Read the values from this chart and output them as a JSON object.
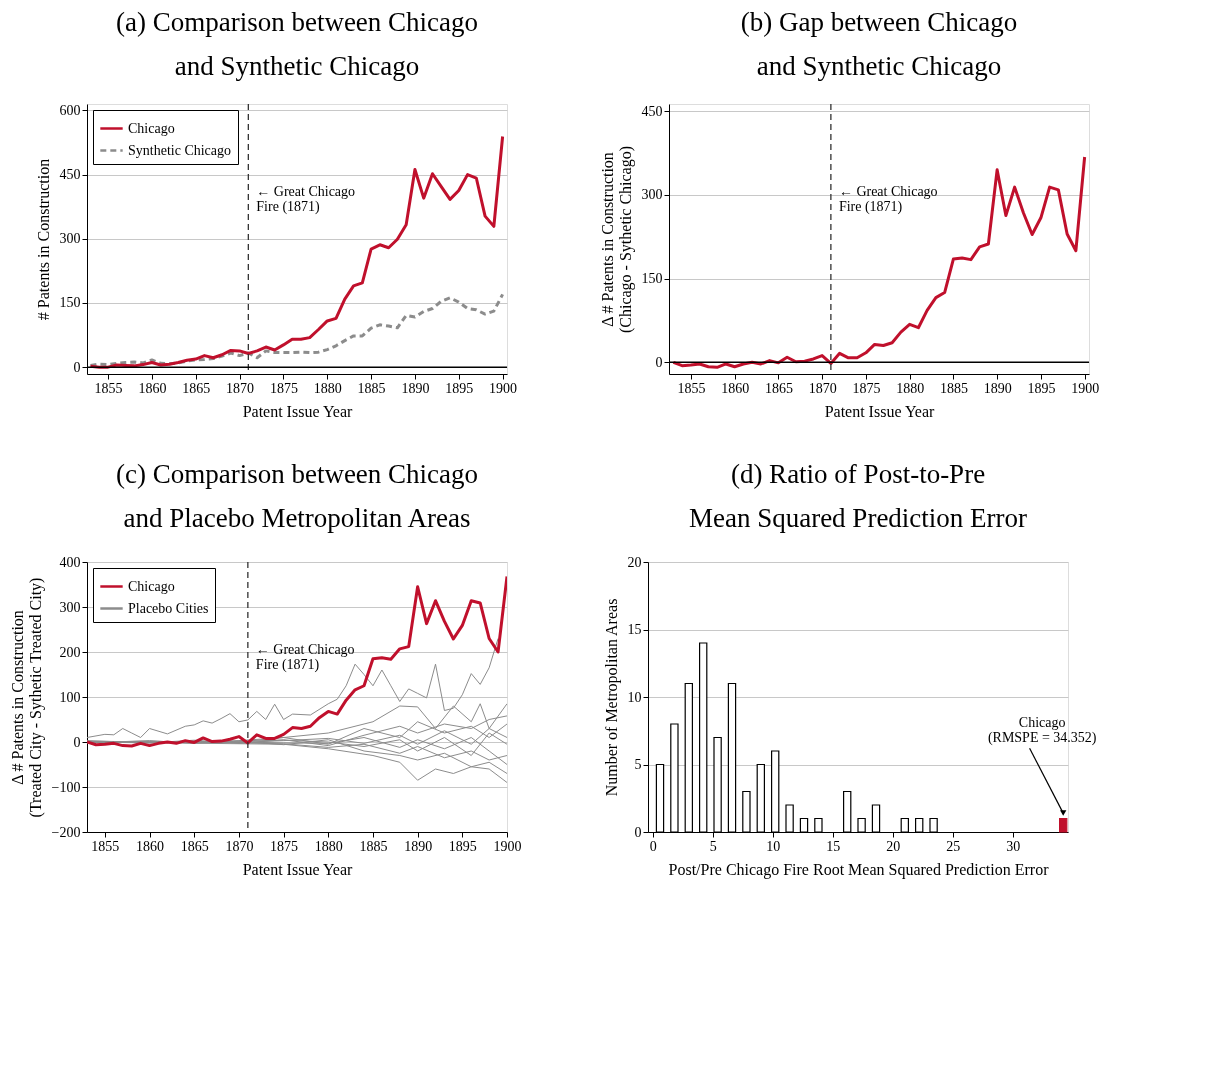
{
  "chart_data": [
    {
      "type": "line",
      "title": "(a) Comparison between Chicago\nand Synthetic Chicago",
      "xlabel": "Patent Issue Year",
      "ylabel": "# Patents in Construction",
      "x": [
        1853,
        1854,
        1855,
        1856,
        1857,
        1858,
        1859,
        1860,
        1861,
        1862,
        1863,
        1864,
        1865,
        1866,
        1867,
        1868,
        1869,
        1870,
        1871,
        1872,
        1873,
        1874,
        1875,
        1876,
        1877,
        1878,
        1879,
        1880,
        1881,
        1882,
        1883,
        1884,
        1885,
        1886,
        1887,
        1888,
        1889,
        1890,
        1891,
        1892,
        1893,
        1894,
        1895,
        1896,
        1897,
        1898,
        1899,
        1900
      ],
      "series": [
        {
          "name": "Chicago",
          "color": "#c0102c",
          "values": [
            2,
            0,
            0,
            5,
            4,
            3,
            6,
            11,
            5,
            7,
            11,
            16,
            19,
            27,
            22,
            29,
            39,
            38,
            32,
            38,
            47,
            40,
            52,
            65,
            65,
            69,
            88,
            108,
            114,
            159,
            190,
            197,
            276,
            286,
            279,
            299,
            333,
            462,
            395,
            452,
            422,
            392,
            413,
            450,
            442,
            353,
            329,
            539
          ]
        },
        {
          "name": "Synthetic Chicago",
          "color": "#8c8c8c",
          "line_style": "dashed",
          "values": [
            4,
            7,
            6,
            9,
            11,
            12,
            10,
            17,
            9,
            8,
            10,
            14,
            17,
            18,
            20,
            26,
            33,
            27,
            33,
            22,
            38,
            34,
            34,
            34,
            35,
            34,
            35,
            41,
            50,
            62,
            73,
            73,
            91,
            99,
            96,
            92,
            121,
            117,
            130,
            137,
            154,
            162,
            152,
            137,
            134,
            124,
            131,
            170
          ]
        }
      ],
      "xlim": [
        1852.6,
        1900.5
      ],
      "ylim": [
        -16,
        615
      ],
      "xticks": [
        1855,
        1860,
        1865,
        1870,
        1875,
        1880,
        1885,
        1890,
        1895,
        1900
      ],
      "yticks": [
        0,
        150,
        300,
        450,
        600
      ],
      "grid": "y",
      "legend": "top left",
      "ref_lines": [
        {
          "axis": "x",
          "value": 1871,
          "label": "← Great Chicago\n    Fire (1871)",
          "line_style": "dashed",
          "color": "#333333"
        },
        {
          "axis": "y",
          "value": 0,
          "color": "#000000",
          "line_style": "solid"
        }
      ]
    },
    {
      "type": "line",
      "title": "(b) Gap between Chicago\nand Synthetic Chicago",
      "xlabel": "Patent Issue Year",
      "ylabel": "Δ # Patents in Construction\n(Chicago - Sythetic Chicago)",
      "x": [
        1853,
        1854,
        1855,
        1856,
        1857,
        1858,
        1859,
        1860,
        1861,
        1862,
        1863,
        1864,
        1865,
        1866,
        1867,
        1868,
        1869,
        1870,
        1871,
        1872,
        1873,
        1874,
        1875,
        1876,
        1877,
        1878,
        1879,
        1880,
        1881,
        1882,
        1883,
        1884,
        1885,
        1886,
        1887,
        1888,
        1889,
        1890,
        1891,
        1892,
        1893,
        1894,
        1895,
        1896,
        1897,
        1898,
        1899,
        1900
      ],
      "series": [
        {
          "color": "#c0102c",
          "values": [
            0,
            -6,
            -5,
            -3,
            -8,
            -9,
            -3,
            -8,
            -3,
            0,
            -3,
            3,
            -1,
            9,
            1,
            2,
            6,
            12,
            -2,
            16,
            8,
            8,
            17,
            32,
            30,
            35,
            54,
            68,
            62,
            93,
            116,
            125,
            185,
            187,
            184,
            207,
            212,
            345,
            263,
            314,
            268,
            229,
            259,
            314,
            309,
            230,
            200,
            368
          ]
        }
      ],
      "xlim": [
        1852.5,
        1900.5
      ],
      "ylim": [
        -21,
        463
      ],
      "xticks": [
        1855,
        1860,
        1865,
        1870,
        1875,
        1880,
        1885,
        1890,
        1895,
        1900
      ],
      "yticks": [
        0,
        150,
        300,
        450
      ],
      "grid": "y",
      "ref_lines": [
        {
          "axis": "x",
          "value": 1871,
          "label": "← Great Chicago\n    Fire (1871)",
          "line_style": "dashed",
          "color": "#333333"
        },
        {
          "axis": "y",
          "value": 0,
          "color": "#000000",
          "line_style": "solid"
        }
      ]
    },
    {
      "type": "line",
      "title": "(c) Comparison between Chicago\nand Placebo Metropolitan Areas",
      "xlabel": "Patent Issue Year",
      "ylabel": "Δ # Patents in Construction\n(Treated City - Sythetic Treated City)",
      "x": [
        1853,
        1854,
        1855,
        1856,
        1857,
        1858,
        1859,
        1860,
        1861,
        1862,
        1863,
        1864,
        1865,
        1866,
        1867,
        1868,
        1869,
        1870,
        1871,
        1872,
        1873,
        1874,
        1875,
        1876,
        1877,
        1878,
        1879,
        1880,
        1881,
        1882,
        1883,
        1884,
        1885,
        1886,
        1887,
        1888,
        1889,
        1890,
        1891,
        1892,
        1893,
        1894,
        1895,
        1896,
        1897,
        1898,
        1899,
        1900
      ],
      "series": [
        {
          "name": "Chicago",
          "color": "#c0102c",
          "values": [
            0,
            -6,
            -5,
            -3,
            -8,
            -9,
            -3,
            -8,
            -3,
            0,
            -3,
            3,
            -1,
            9,
            1,
            2,
            6,
            12,
            -2,
            16,
            8,
            8,
            17,
            32,
            30,
            35,
            54,
            68,
            62,
            93,
            116,
            125,
            185,
            187,
            184,
            207,
            212,
            345,
            263,
            314,
            268,
            229,
            259,
            314,
            309,
            230,
            200,
            368
          ]
        },
        {
          "name": "Placebo Cities",
          "color": "#8c8c8c",
          "x": [
            1853,
            1855,
            1856,
            1857,
            1858,
            1859,
            1860,
            1862,
            1864,
            1865,
            1866,
            1867,
            1868,
            1869,
            1870,
            1871,
            1872,
            1873,
            1874,
            1875,
            1876,
            1878,
            1880,
            1881,
            1882,
            1883,
            1884,
            1885,
            1886,
            1887,
            1888,
            1889,
            1890,
            1891,
            1892,
            1893,
            1894,
            1895,
            1896,
            1897,
            1898,
            1899
          ],
          "values": [
            10,
            17,
            16,
            30,
            20,
            10,
            30,
            18,
            35,
            38,
            47,
            42,
            52,
            63,
            45,
            49,
            68,
            50,
            84,
            50,
            62,
            60,
            85,
            95,
            125,
            173,
            150,
            125,
            160,
            125,
            90,
            118,
            108,
            98,
            173,
            70,
            75,
            105,
            152,
            128,
            165,
            230
          ]
        },
        {
          "color": "#8c8c8c",
          "x": [
            1853,
            1870,
            1880,
            1885,
            1888,
            1890,
            1892,
            1894,
            1896,
            1897,
            1898,
            1900
          ],
          "values": [
            0,
            0,
            20,
            45,
            80,
            78,
            30,
            80,
            45,
            85,
            30,
            85
          ]
        },
        {
          "color": "#8c8c8c",
          "x": [
            1853,
            1875,
            1880,
            1885,
            1888,
            1890,
            1892,
            1894,
            1896,
            1898,
            1900
          ],
          "values": [
            0,
            -5,
            -15,
            -30,
            -45,
            -85,
            -60,
            -70,
            -55,
            -60,
            -90
          ]
        },
        {
          "color": "#8c8c8c",
          "x": [
            1853,
            1860,
            1865,
            1870,
            1875,
            1880,
            1884,
            1888,
            1890,
            1893,
            1896,
            1898,
            1900
          ],
          "values": [
            3,
            -2,
            4,
            -3,
            5,
            -8,
            15,
            35,
            20,
            40,
            30,
            50,
            58
          ]
        },
        {
          "color": "#8c8c8c",
          "x": [
            1853,
            1860,
            1865,
            1870,
            1875,
            1880,
            1884,
            1888,
            1890,
            1893,
            1896,
            1898,
            1900
          ],
          "values": [
            -2,
            3,
            -3,
            2,
            -6,
            5,
            -20,
            -30,
            -40,
            -25,
            -55,
            -45,
            -70
          ]
        },
        {
          "color": "#8c8c8c",
          "x": [
            1853,
            1860,
            1865,
            1870,
            1875,
            1880,
            1884,
            1888,
            1890,
            1893,
            1896,
            1898,
            1900
          ],
          "values": [
            0,
            1,
            -2,
            3,
            10,
            -5,
            30,
            10,
            45,
            20,
            35,
            10,
            40
          ]
        },
        {
          "color": "#8c8c8c",
          "x": [
            1853,
            1860,
            1865,
            1870,
            1875,
            1880,
            1884,
            1888,
            1890,
            1893,
            1896,
            1898,
            1900
          ],
          "values": [
            1,
            -1,
            2,
            -2,
            -4,
            -12,
            -5,
            -25,
            -10,
            -35,
            -20,
            -40,
            -30
          ]
        },
        {
          "color": "#8c8c8c",
          "x": [
            1853,
            1860,
            1865,
            1870,
            1875,
            1880,
            1884,
            1888,
            1890,
            1893,
            1896,
            1898,
            1900
          ],
          "values": [
            2,
            0,
            1,
            -1,
            3,
            8,
            -3,
            15,
            -5,
            25,
            -5,
            30,
            10
          ]
        },
        {
          "color": "#8c8c8c",
          "x": [
            1853,
            1860,
            1865,
            1870,
            1875,
            1880,
            1884,
            1888,
            1890,
            1893,
            1896,
            1898,
            1900
          ],
          "values": [
            -1,
            2,
            -1,
            0,
            -2,
            -3,
            10,
            -12,
            5,
            -15,
            10,
            -20,
            -50
          ]
        },
        {
          "color": "#8c8c8c",
          "x": [
            1853,
            1860,
            1865,
            1870,
            1875,
            1880,
            1884,
            1888,
            1890,
            1893,
            1896,
            1898,
            1900
          ],
          "values": [
            0,
            -2,
            1,
            2,
            4,
            0,
            -10,
            5,
            -20,
            10,
            -30,
            20,
            -5
          ]
        }
      ],
      "xlim": [
        1853,
        1900
      ],
      "ylim": [
        -200,
        400
      ],
      "xticks": [
        1855,
        1860,
        1865,
        1870,
        1875,
        1880,
        1885,
        1890,
        1895,
        1900
      ],
      "yticks": [
        -200,
        -100,
        0,
        100,
        200,
        300,
        400
      ],
      "grid": "y",
      "legend": "top left",
      "ref_lines": [
        {
          "axis": "x",
          "value": 1871,
          "label": "← Great Chicago\nFire (1871)",
          "line_style": "dashed",
          "color": "#333333"
        }
      ]
    },
    {
      "type": "bar",
      "title": "(d) Ratio of Post-to-Pre\nMean Squared Prediction Error",
      "xlabel": "Post/Pre Chicago Fire Root Mean Squared Prediction Error",
      "ylabel": "Number of Metropolitan Areas",
      "series": [
        {
          "color": "#ffffff",
          "x": [
            0.6,
            1.8,
            3.0,
            4.2,
            5.4,
            6.6,
            7.8,
            9.0,
            10.2,
            11.4,
            12.6,
            13.8,
            16.2,
            17.4,
            18.6,
            21.0,
            22.2,
            23.4
          ],
          "values": [
            5,
            8,
            11,
            14,
            7,
            11,
            3,
            5,
            6,
            2,
            1,
            1,
            3,
            1,
            2,
            1,
            1,
            1
          ]
        },
        {
          "color": "#c0102c",
          "x": [
            34.2
          ],
          "values": [
            1
          ]
        }
      ],
      "xlim": [
        -0.4,
        34.6
      ],
      "ylim": [
        0,
        20
      ],
      "xticks": [
        0,
        5,
        10,
        15,
        20,
        25,
        30
      ],
      "yticks": [
        0,
        5,
        10,
        15,
        20
      ],
      "grid": "y",
      "annotations": [
        {
          "text": "Chicago\n(RMSPE = 34.352)",
          "x": 34.2,
          "y": 1
        }
      ]
    }
  ]
}
